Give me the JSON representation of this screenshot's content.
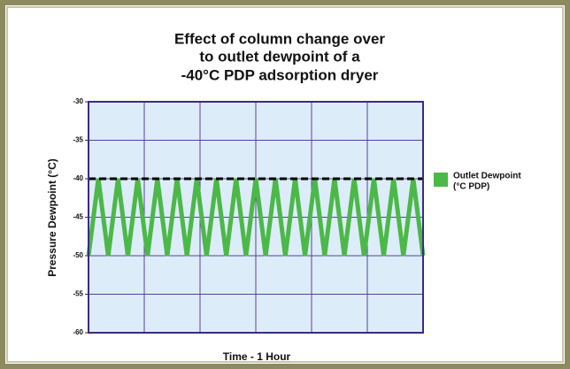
{
  "chart_data": {
    "type": "line",
    "title": [
      "Effect of column change over",
      "to outlet dewpoint of a",
      "-40°C PDP adsorption dryer"
    ],
    "x_label": "Time - 1 Hour",
    "y_label": "Pressure Dewpoint (°C)",
    "ylim": [
      -60,
      -30
    ],
    "yticks": [
      -30,
      -35,
      -40,
      -45,
      -50,
      -55,
      -60
    ],
    "grid": true,
    "reference_line": -40,
    "legend": "right",
    "series": [
      {
        "name": [
          "Outlet Dewpoint",
          "(°C PDP)"
        ],
        "color": "#4cb848",
        "values": [
          -50,
          -40,
          -50,
          -40,
          -50,
          -40,
          -50,
          -40,
          -50,
          -40,
          -50,
          -40,
          -50,
          -40,
          -50,
          -40,
          -50,
          -40,
          -50,
          -40,
          -50,
          -40,
          -50,
          -40,
          -50,
          -40,
          -50,
          -40,
          -50,
          -40,
          -50,
          -40,
          -50,
          -40,
          -50
        ]
      }
    ]
  }
}
